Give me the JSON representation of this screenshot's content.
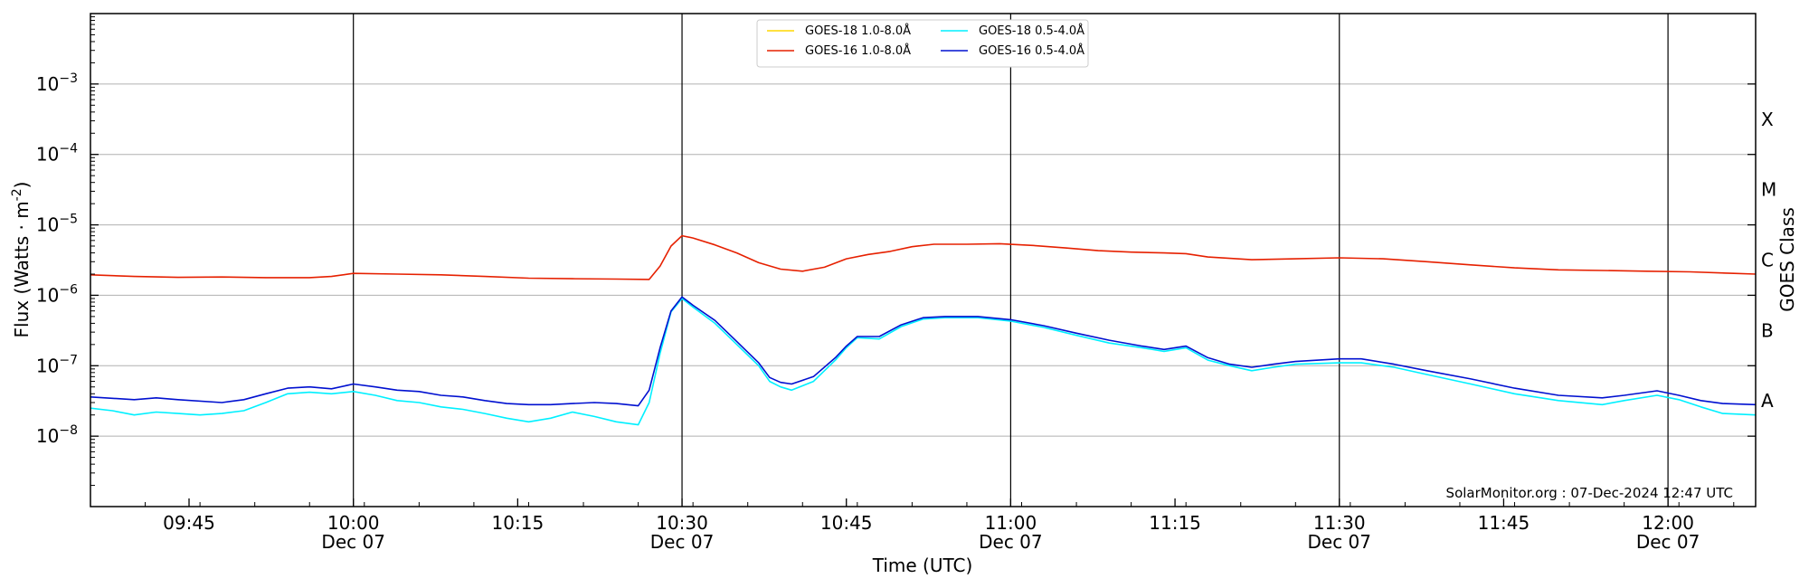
{
  "chart_data": {
    "type": "line",
    "xlabel": "Time (UTC)",
    "ylabel": "Flux (Watts · m",
    "ylabel_sup": "-2",
    "ylabel_close": ")",
    "y2label": "GOES Class",
    "yscale": "log",
    "ylim": [
      1e-09,
      0.01
    ],
    "xlim": [
      "09:36",
      "12:08"
    ],
    "y_ticks": [
      {
        "exp": -8,
        "base": "10",
        "sup": "−8"
      },
      {
        "exp": -7,
        "base": "10",
        "sup": "−7"
      },
      {
        "exp": -6,
        "base": "10",
        "sup": "−6"
      },
      {
        "exp": -5,
        "base": "10",
        "sup": "−5"
      },
      {
        "exp": -4,
        "base": "10",
        "sup": "−4"
      },
      {
        "exp": -3,
        "base": "10",
        "sup": "−3"
      }
    ],
    "x_ticks": [
      {
        "t": "09:45",
        "label": "09:45",
        "sub": ""
      },
      {
        "t": "10:00",
        "label": "10:00",
        "sub": "Dec 07"
      },
      {
        "t": "10:15",
        "label": "10:15",
        "sub": ""
      },
      {
        "t": "10:30",
        "label": "10:30",
        "sub": "Dec 07"
      },
      {
        "t": "10:45",
        "label": "10:45",
        "sub": ""
      },
      {
        "t": "11:00",
        "label": "11:00",
        "sub": "Dec 07"
      },
      {
        "t": "11:15",
        "label": "11:15",
        "sub": ""
      },
      {
        "t": "11:30",
        "label": "11:30",
        "sub": "Dec 07"
      },
      {
        "t": "11:45",
        "label": "11:45",
        "sub": ""
      },
      {
        "t": "12:00",
        "label": "12:00",
        "sub": "Dec 07"
      }
    ],
    "vlines": [
      "10:00",
      "10:30",
      "11:00",
      "11:30",
      "12:00"
    ],
    "goes_classes": [
      {
        "label": "A",
        "exp": -7.5
      },
      {
        "label": "B",
        "exp": -6.5
      },
      {
        "label": "C",
        "exp": -5.5
      },
      {
        "label": "M",
        "exp": -4.5
      },
      {
        "label": "X",
        "exp": -3.5
      }
    ],
    "grid": "horizontal",
    "legend_position": "top-center",
    "annotation": "SolarMonitor.org : 07-Dec-2024 12:47 UTC",
    "series": [
      {
        "name": "GOES-18 1.0-8.0Å",
        "color": "#ffd700",
        "points": []
      },
      {
        "name": "GOES-16 1.0-8.0Å",
        "color": "#e62000",
        "points": [
          [
            "09:36",
            1.95e-06
          ],
          [
            "09:40",
            1.85e-06
          ],
          [
            "09:44",
            1.8e-06
          ],
          [
            "09:48",
            1.82e-06
          ],
          [
            "09:52",
            1.78e-06
          ],
          [
            "09:56",
            1.78e-06
          ],
          [
            "09:58",
            1.85e-06
          ],
          [
            "10:00",
            2.05e-06
          ],
          [
            "10:04",
            2e-06
          ],
          [
            "10:08",
            1.95e-06
          ],
          [
            "10:12",
            1.85e-06
          ],
          [
            "10:16",
            1.75e-06
          ],
          [
            "10:20",
            1.72e-06
          ],
          [
            "10:24",
            1.7e-06
          ],
          [
            "10:27",
            1.68e-06
          ],
          [
            "10:28",
            2.6e-06
          ],
          [
            "10:29",
            5e-06
          ],
          [
            "10:30",
            7e-06
          ],
          [
            "10:31",
            6.5e-06
          ],
          [
            "10:33",
            5.2e-06
          ],
          [
            "10:35",
            4e-06
          ],
          [
            "10:37",
            2.9e-06
          ],
          [
            "10:39",
            2.35e-06
          ],
          [
            "10:41",
            2.2e-06
          ],
          [
            "10:43",
            2.5e-06
          ],
          [
            "10:45",
            3.3e-06
          ],
          [
            "10:47",
            3.8e-06
          ],
          [
            "10:49",
            4.2e-06
          ],
          [
            "10:51",
            4.9e-06
          ],
          [
            "10:53",
            5.3e-06
          ],
          [
            "10:56",
            5.3e-06
          ],
          [
            "10:59",
            5.4e-06
          ],
          [
            "11:02",
            5.1e-06
          ],
          [
            "11:05",
            4.7e-06
          ],
          [
            "11:08",
            4.3e-06
          ],
          [
            "11:11",
            4.1e-06
          ],
          [
            "11:14",
            4e-06
          ],
          [
            "11:16",
            3.9e-06
          ],
          [
            "11:18",
            3.5e-06
          ],
          [
            "11:22",
            3.2e-06
          ],
          [
            "11:26",
            3.3e-06
          ],
          [
            "11:30",
            3.4e-06
          ],
          [
            "11:34",
            3.3e-06
          ],
          [
            "11:38",
            3e-06
          ],
          [
            "11:42",
            2.7e-06
          ],
          [
            "11:46",
            2.45e-06
          ],
          [
            "11:50",
            2.3e-06
          ],
          [
            "11:54",
            2.25e-06
          ],
          [
            "11:58",
            2.2e-06
          ],
          [
            "12:02",
            2.15e-06
          ],
          [
            "12:06",
            2.05e-06
          ],
          [
            "12:08",
            2e-06
          ]
        ]
      },
      {
        "name": "GOES-18 0.5-4.0Å",
        "color": "#00f0ff",
        "points": [
          [
            "09:36",
            2.5e-08
          ],
          [
            "09:38",
            2.3e-08
          ],
          [
            "09:40",
            2e-08
          ],
          [
            "09:42",
            2.2e-08
          ],
          [
            "09:44",
            2.1e-08
          ],
          [
            "09:46",
            2e-08
          ],
          [
            "09:48",
            2.1e-08
          ],
          [
            "09:50",
            2.3e-08
          ],
          [
            "09:52",
            3e-08
          ],
          [
            "09:54",
            4e-08
          ],
          [
            "09:56",
            4.2e-08
          ],
          [
            "09:58",
            4e-08
          ],
          [
            "10:00",
            4.3e-08
          ],
          [
            "10:02",
            3.8e-08
          ],
          [
            "10:04",
            3.2e-08
          ],
          [
            "10:06",
            3e-08
          ],
          [
            "10:08",
            2.6e-08
          ],
          [
            "10:10",
            2.4e-08
          ],
          [
            "10:12",
            2.1e-08
          ],
          [
            "10:14",
            1.8e-08
          ],
          [
            "10:16",
            1.6e-08
          ],
          [
            "10:18",
            1.8e-08
          ],
          [
            "10:20",
            2.2e-08
          ],
          [
            "10:22",
            1.9e-08
          ],
          [
            "10:24",
            1.6e-08
          ],
          [
            "10:26",
            1.45e-08
          ],
          [
            "10:27",
            3e-08
          ],
          [
            "10:28",
            1.5e-07
          ],
          [
            "10:29",
            5.8e-07
          ],
          [
            "10:30",
            9e-07
          ],
          [
            "10:31",
            6.8e-07
          ],
          [
            "10:33",
            4e-07
          ],
          [
            "10:35",
            2e-07
          ],
          [
            "10:37",
            1e-07
          ],
          [
            "10:38",
            6e-08
          ],
          [
            "10:39",
            5e-08
          ],
          [
            "10:40",
            4.5e-08
          ],
          [
            "10:42",
            6e-08
          ],
          [
            "10:44",
            1.2e-07
          ],
          [
            "10:45",
            1.8e-07
          ],
          [
            "10:46",
            2.5e-07
          ],
          [
            "10:48",
            2.4e-07
          ],
          [
            "10:50",
            3.6e-07
          ],
          [
            "10:52",
            4.6e-07
          ],
          [
            "10:54",
            4.8e-07
          ],
          [
            "10:57",
            4.8e-07
          ],
          [
            "11:00",
            4.3e-07
          ],
          [
            "11:03",
            3.5e-07
          ],
          [
            "11:06",
            2.7e-07
          ],
          [
            "11:09",
            2.1e-07
          ],
          [
            "11:12",
            1.8e-07
          ],
          [
            "11:14",
            1.6e-07
          ],
          [
            "11:16",
            1.8e-07
          ],
          [
            "11:18",
            1.2e-07
          ],
          [
            "11:20",
            1e-07
          ],
          [
            "11:22",
            8.5e-08
          ],
          [
            "11:24",
            9.5e-08
          ],
          [
            "11:26",
            1.05e-07
          ],
          [
            "11:30",
            1.1e-07
          ],
          [
            "11:32",
            1.1e-07
          ],
          [
            "11:35",
            9.5e-08
          ],
          [
            "11:38",
            7.5e-08
          ],
          [
            "11:42",
            5.5e-08
          ],
          [
            "11:46",
            4e-08
          ],
          [
            "11:50",
            3.2e-08
          ],
          [
            "11:54",
            2.8e-08
          ],
          [
            "11:56",
            3.2e-08
          ],
          [
            "11:59",
            3.8e-08
          ],
          [
            "12:01",
            3.3e-08
          ],
          [
            "12:03",
            2.6e-08
          ],
          [
            "12:05",
            2.1e-08
          ],
          [
            "12:08",
            2e-08
          ]
        ]
      },
      {
        "name": "GOES-16 0.5-4.0Å",
        "color": "#0010d0",
        "points": [
          [
            "09:36",
            3.6e-08
          ],
          [
            "09:40",
            3.3e-08
          ],
          [
            "09:42",
            3.5e-08
          ],
          [
            "09:44",
            3.3e-08
          ],
          [
            "09:48",
            3e-08
          ],
          [
            "09:50",
            3.3e-08
          ],
          [
            "09:52",
            4e-08
          ],
          [
            "09:54",
            4.8e-08
          ],
          [
            "09:56",
            5e-08
          ],
          [
            "09:58",
            4.7e-08
          ],
          [
            "10:00",
            5.5e-08
          ],
          [
            "10:02",
            5e-08
          ],
          [
            "10:04",
            4.5e-08
          ],
          [
            "10:06",
            4.3e-08
          ],
          [
            "10:08",
            3.8e-08
          ],
          [
            "10:10",
            3.6e-08
          ],
          [
            "10:12",
            3.2e-08
          ],
          [
            "10:14",
            2.9e-08
          ],
          [
            "10:16",
            2.8e-08
          ],
          [
            "10:18",
            2.8e-08
          ],
          [
            "10:20",
            2.9e-08
          ],
          [
            "10:22",
            3e-08
          ],
          [
            "10:24",
            2.9e-08
          ],
          [
            "10:26",
            2.7e-08
          ],
          [
            "10:27",
            4.5e-08
          ],
          [
            "10:28",
            1.8e-07
          ],
          [
            "10:29",
            6e-07
          ],
          [
            "10:30",
            9.5e-07
          ],
          [
            "10:31",
            7.2e-07
          ],
          [
            "10:33",
            4.4e-07
          ],
          [
            "10:35",
            2.2e-07
          ],
          [
            "10:37",
            1.1e-07
          ],
          [
            "10:38",
            6.8e-08
          ],
          [
            "10:39",
            5.8e-08
          ],
          [
            "10:40",
            5.5e-08
          ],
          [
            "10:42",
            7e-08
          ],
          [
            "10:44",
            1.3e-07
          ],
          [
            "10:45",
            1.9e-07
          ],
          [
            "10:46",
            2.6e-07
          ],
          [
            "10:48",
            2.6e-07
          ],
          [
            "10:50",
            3.8e-07
          ],
          [
            "10:52",
            4.8e-07
          ],
          [
            "10:54",
            5e-07
          ],
          [
            "10:57",
            5e-07
          ],
          [
            "11:00",
            4.5e-07
          ],
          [
            "11:03",
            3.7e-07
          ],
          [
            "11:06",
            2.9e-07
          ],
          [
            "11:09",
            2.3e-07
          ],
          [
            "11:12",
            1.9e-07
          ],
          [
            "11:14",
            1.7e-07
          ],
          [
            "11:16",
            1.9e-07
          ],
          [
            "11:18",
            1.3e-07
          ],
          [
            "11:20",
            1.05e-07
          ],
          [
            "11:22",
            9.5e-08
          ],
          [
            "11:24",
            1.05e-07
          ],
          [
            "11:26",
            1.15e-07
          ],
          [
            "11:30",
            1.25e-07
          ],
          [
            "11:32",
            1.25e-07
          ],
          [
            "11:35",
            1.05e-07
          ],
          [
            "11:38",
            8.5e-08
          ],
          [
            "11:42",
            6.5e-08
          ],
          [
            "11:46",
            4.8e-08
          ],
          [
            "11:50",
            3.8e-08
          ],
          [
            "11:54",
            3.5e-08
          ],
          [
            "11:56",
            3.8e-08
          ],
          [
            "11:59",
            4.4e-08
          ],
          [
            "12:01",
            3.8e-08
          ],
          [
            "12:03",
            3.2e-08
          ],
          [
            "12:05",
            2.9e-08
          ],
          [
            "12:08",
            2.8e-08
          ]
        ]
      }
    ]
  }
}
